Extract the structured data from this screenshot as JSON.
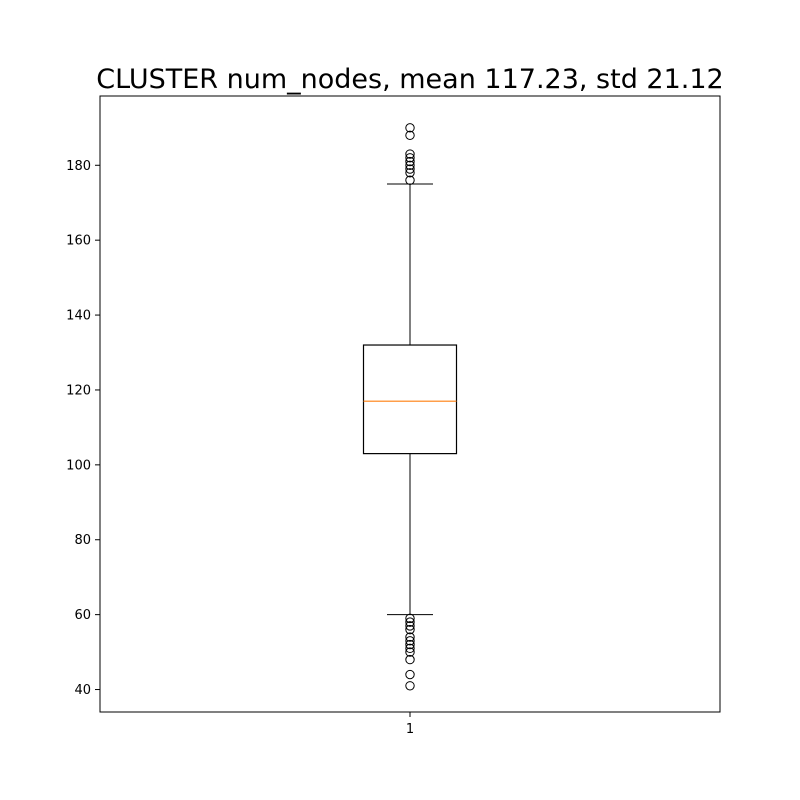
{
  "chart_data": {
    "type": "box",
    "title": "CLUSTER num_nodes, mean 117.23, std 21.12",
    "xlabel": "",
    "ylabel": "",
    "categories": [
      "1"
    ],
    "ylim": [
      34,
      198.5
    ],
    "yticks": [
      40,
      60,
      80,
      100,
      120,
      140,
      160,
      180
    ],
    "grid": false,
    "series": [
      {
        "category": "1",
        "whisker_low": 60,
        "q1": 103,
        "median": 117,
        "q3": 132,
        "whisker_high": 175,
        "outliers": [
          41,
          44,
          48,
          50,
          51,
          52,
          53,
          54,
          56,
          57,
          58,
          59,
          176,
          178,
          179,
          180,
          181,
          182,
          183,
          188,
          190
        ]
      }
    ],
    "colors": {
      "box": "#000000",
      "median": "#ff7f0e",
      "outlier": "#000000",
      "axes": "#000000"
    }
  }
}
